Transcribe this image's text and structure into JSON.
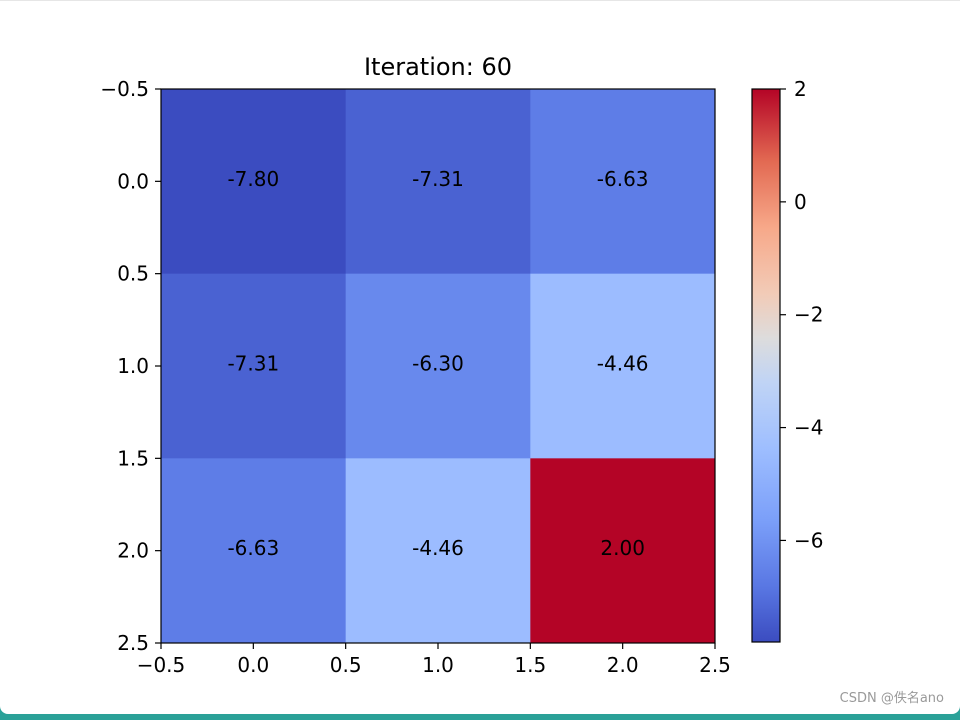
{
  "watermark": "CSDN @佚名ano",
  "colors": {
    "low": "#3b4cc0",
    "high": "#b40426"
  },
  "chart_data": {
    "type": "heatmap",
    "title": "Iteration: 60",
    "colormap": "coolwarm",
    "matrix": [
      [
        -7.8,
        -7.31,
        -6.63
      ],
      [
        -7.31,
        -6.3,
        -4.46
      ],
      [
        -6.63,
        -4.46,
        2.0
      ]
    ],
    "cell_labels": [
      [
        "-7.80",
        "-7.31",
        "-6.63"
      ],
      [
        "-7.31",
        "-6.30",
        "-4.46"
      ],
      [
        "-6.63",
        "-4.46",
        "2.00"
      ]
    ],
    "xlim": [
      -0.5,
      2.5
    ],
    "ylim": [
      2.5,
      -0.5
    ],
    "xticks": [
      "−0.5",
      "0.0",
      "0.5",
      "1.0",
      "1.5",
      "2.0",
      "2.5"
    ],
    "yticks": [
      "−0.5",
      "0.0",
      "0.5",
      "1.0",
      "1.5",
      "2.0",
      "2.5"
    ],
    "colorbar": {
      "range": [
        -7.8,
        2.0
      ],
      "ticks": [
        2,
        0,
        -2,
        -4,
        -6
      ],
      "tick_labels": [
        "2",
        "0",
        "−2",
        "−4",
        "−6"
      ]
    },
    "xlabel": "",
    "ylabel": "",
    "grid": false,
    "legend": "none"
  }
}
